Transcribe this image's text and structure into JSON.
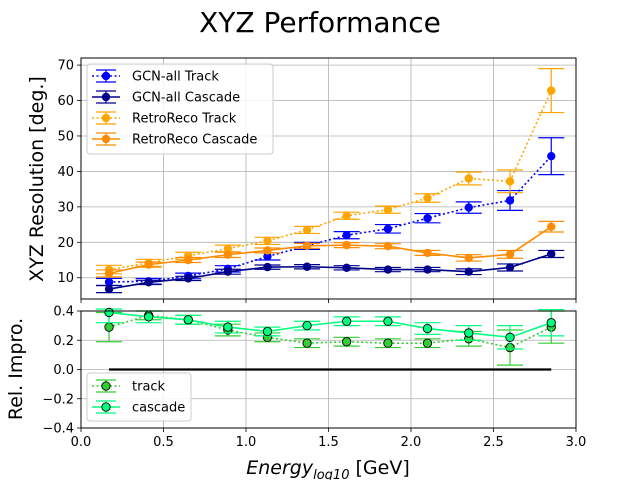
{
  "figure": {
    "title": "XYZ Performance"
  },
  "chart_data": [
    {
      "type": "line",
      "ylabel": "XYZ Resolution [deg.]",
      "xlim": [
        0.0,
        3.0
      ],
      "ylim": [
        4,
        72
      ],
      "yticks": [
        10,
        20,
        30,
        40,
        50,
        60,
        70
      ],
      "grid": true,
      "legend_position": "upper-left",
      "x": [
        0.17,
        0.41,
        0.65,
        0.89,
        1.13,
        1.37,
        1.61,
        1.86,
        2.1,
        2.35,
        2.6,
        2.85
      ],
      "series": [
        {
          "name": "GCN-all Track",
          "color": "#0000ff",
          "linestyle": "dotted",
          "values": [
            8.8,
            9.0,
            10.5,
            12.5,
            16.0,
            19.0,
            22.0,
            23.8,
            26.8,
            29.8,
            31.8,
            44.3
          ],
          "errors": [
            1.0,
            0.8,
            0.8,
            0.9,
            1.0,
            1.0,
            1.0,
            1.2,
            1.3,
            1.6,
            2.8,
            5.2
          ]
        },
        {
          "name": "GCN-all Cascade",
          "color": "#00008b",
          "linestyle": "solid",
          "values": [
            6.8,
            8.7,
            9.8,
            11.7,
            13.0,
            13.1,
            12.8,
            12.3,
            12.3,
            11.7,
            12.9,
            16.7
          ],
          "errors": [
            1.0,
            0.6,
            0.6,
            0.7,
            0.6,
            0.6,
            0.6,
            0.6,
            0.6,
            0.8,
            1.0,
            1.0
          ]
        },
        {
          "name": "RetroReco Track",
          "color": "#ffa500",
          "linestyle": "dotted",
          "values": [
            12.3,
            14.2,
            16.2,
            18.2,
            20.4,
            23.5,
            27.5,
            29.2,
            32.5,
            38.0,
            37.2,
            62.8
          ],
          "errors": [
            1.2,
            1.0,
            1.0,
            1.0,
            1.0,
            1.0,
            1.0,
            1.0,
            1.2,
            1.8,
            3.2,
            6.2
          ]
        },
        {
          "name": "RetroReco Cascade",
          "color": "#ff8c00",
          "linestyle": "solid",
          "values": [
            11.2,
            13.7,
            15.0,
            16.5,
            17.7,
            19.0,
            19.2,
            18.9,
            17.0,
            15.6,
            16.6,
            24.4
          ],
          "errors": [
            1.0,
            0.7,
            0.7,
            0.8,
            0.7,
            0.7,
            0.7,
            0.7,
            0.7,
            0.9,
            1.1,
            1.5
          ]
        }
      ]
    },
    {
      "type": "line",
      "xlabel_base": "Energy",
      "xlabel_sub": "log10",
      "xlabel_unit": " [GeV]",
      "ylabel": "Rel. Impro.",
      "xlim": [
        0.0,
        3.0
      ],
      "ylim": [
        -0.4,
        0.4
      ],
      "xticks": [
        "0.0",
        "0.5",
        "1.0",
        "1.5",
        "2.0",
        "2.5",
        "3.0"
      ],
      "yticks": [
        "−0.4",
        "−0.2",
        "0.0",
        "0.2",
        "0.4"
      ],
      "grid": true,
      "legend_position": "lower-left",
      "reference_line": {
        "y": 0,
        "x_from": 0.17,
        "x_to": 2.85,
        "color": "#000000"
      },
      "x": [
        0.17,
        0.41,
        0.65,
        0.89,
        1.13,
        1.37,
        1.61,
        1.86,
        2.1,
        2.35,
        2.6,
        2.85
      ],
      "series": [
        {
          "name": "track",
          "color": "#32cd32",
          "linestyle": "dotted",
          "values": [
            0.29,
            0.37,
            0.34,
            0.27,
            0.22,
            0.18,
            0.19,
            0.18,
            0.18,
            0.21,
            0.15,
            0.29
          ],
          "errors": [
            0.1,
            0.03,
            0.03,
            0.04,
            0.03,
            0.03,
            0.03,
            0.03,
            0.03,
            0.05,
            0.12,
            0.11
          ]
        },
        {
          "name": "cascade",
          "color": "#00ff7f",
          "linestyle": "solid",
          "values": [
            0.39,
            0.36,
            0.34,
            0.29,
            0.26,
            0.3,
            0.33,
            0.33,
            0.28,
            0.25,
            0.22,
            0.32
          ],
          "errors": [
            0.07,
            0.04,
            0.03,
            0.04,
            0.03,
            0.03,
            0.03,
            0.03,
            0.04,
            0.05,
            0.08,
            0.09
          ]
        }
      ]
    }
  ]
}
